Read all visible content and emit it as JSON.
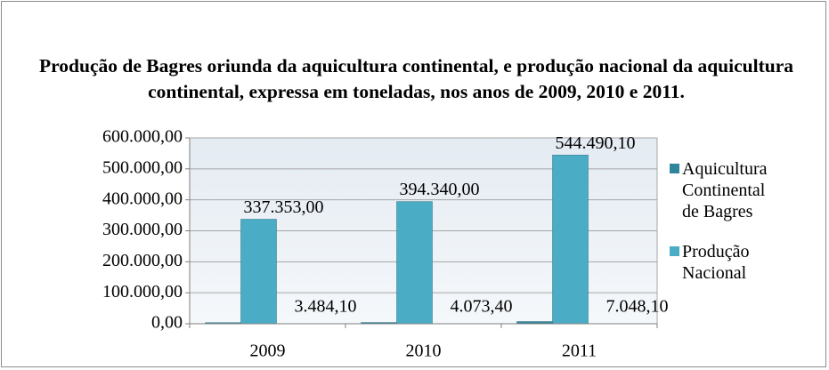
{
  "chart_data": {
    "type": "bar",
    "title": "Produção de Bagres oriunda da aquicultura continental, e produção nacional da aquicultura continental, expressa em toneladas, nos anos de 2009, 2010 e 2011.",
    "categories": [
      "2009",
      "2010",
      "2011"
    ],
    "series": [
      {
        "name": "Aquicultura Continental de Bagres",
        "color": "#31849b",
        "values": [
          3484.1,
          4073.4,
          7048.1
        ],
        "value_labels": [
          "3.484,10",
          "4.073,40",
          "7.048,10"
        ]
      },
      {
        "name": "Produção Nacional",
        "color": "#4bacc6",
        "values": [
          337353.0,
          394340.0,
          544490.1
        ],
        "value_labels": [
          "337.353,00",
          "394.340,00",
          "544.490,10"
        ]
      }
    ],
    "ylim": [
      0,
      600000
    ],
    "yticks": [
      {
        "value": 0,
        "label": "0,00"
      },
      {
        "value": 100000,
        "label": "100.000,00"
      },
      {
        "value": 200000,
        "label": "200.000,00"
      },
      {
        "value": 300000,
        "label": "300.000,00"
      },
      {
        "value": 400000,
        "label": "400.000,00"
      },
      {
        "value": 500000,
        "label": "500.000,00"
      },
      {
        "value": 600000,
        "label": "600.000,00"
      }
    ],
    "grid": true,
    "legend": "right"
  }
}
